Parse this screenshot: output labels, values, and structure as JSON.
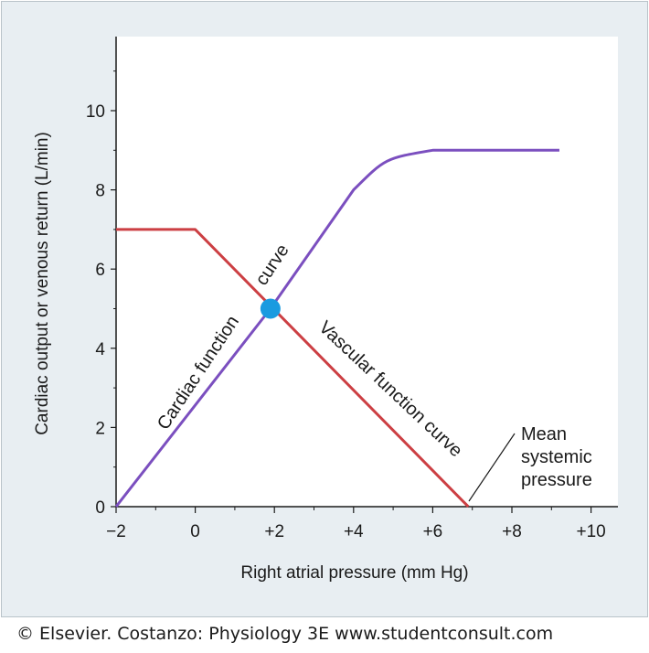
{
  "footer": "© Elsevier. Costanzo: Physiology 3E www.studentconsult.com",
  "colors": {
    "cardiac": "#7b4fbf",
    "vascular": "#cc3f43",
    "point": "#1a9be0",
    "plot_bg": "#ffffff",
    "frame_bg": "#e8eef2"
  },
  "chart_data": {
    "type": "line",
    "xlabel": "Right atrial pressure (mm Hg)",
    "ylabel": "Cardiac output or venous return (L/min)",
    "xlim": [
      -2,
      11
    ],
    "ylim": [
      0,
      11.8
    ],
    "x_ticks": [
      -2,
      0,
      2,
      4,
      6,
      8,
      10
    ],
    "x_tick_labels": [
      "−2",
      "0",
      "+2",
      "+4",
      "+6",
      "+8",
      "+10"
    ],
    "y_ticks": [
      0,
      2,
      4,
      6,
      8,
      10
    ],
    "y_tick_labels": [
      "0",
      "2",
      "4",
      "6",
      "8",
      "10"
    ],
    "series": [
      {
        "key": "cardiac",
        "points": [
          [
            -2,
            0
          ],
          [
            1.9,
            5.0
          ],
          [
            4.0,
            8.0
          ],
          [
            4.8,
            8.8
          ],
          [
            6.0,
            9.0
          ],
          [
            9.2,
            9.0
          ]
        ]
      },
      {
        "key": "vascular",
        "points": [
          [
            -2,
            7.0
          ],
          [
            0,
            7.0
          ],
          [
            6.9,
            0
          ]
        ]
      }
    ],
    "equilibrium_point": [
      1.9,
      5.0
    ],
    "annotations": {
      "cardiac_line1": "Cardiac function",
      "cardiac_line2": "curve",
      "vascular": "Vascular function curve",
      "msp_lines": [
        "Mean",
        "systemic",
        "pressure"
      ]
    }
  }
}
